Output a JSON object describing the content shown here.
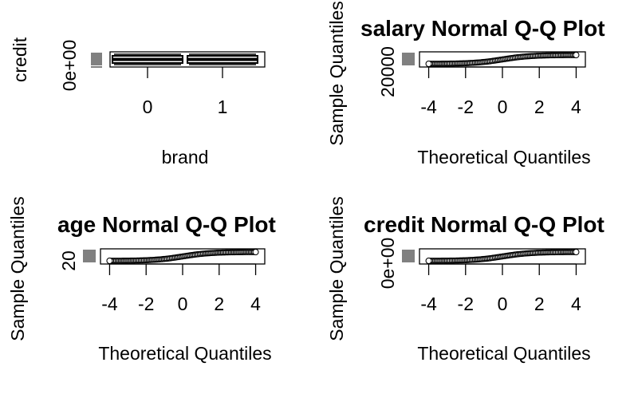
{
  "chart_data": [
    {
      "type": "boxplot",
      "title": "",
      "xlabel": "brand",
      "ylabel": "credit",
      "categories": [
        "0",
        "1"
      ],
      "y_tick_labels": [
        "0e+00"
      ]
    },
    {
      "type": "scatter",
      "title": "salary  Normal Q-Q Plot",
      "xlabel": "Theoretical Quantiles",
      "ylabel": "Sample Quantiles",
      "xlim": [
        -4.5,
        4.5
      ],
      "x_ticks": [
        -4,
        -2,
        0,
        2,
        4
      ],
      "y_tick_labels": [
        "20000"
      ]
    },
    {
      "type": "scatter",
      "title": "age  Normal Q-Q Plot",
      "xlabel": "Theoretical Quantiles",
      "ylabel": "Sample Quantiles",
      "xlim": [
        -4.5,
        4.5
      ],
      "x_ticks": [
        -4,
        -2,
        0,
        2,
        4
      ],
      "y_tick_labels": [
        "20"
      ]
    },
    {
      "type": "scatter",
      "title": "credit  Normal Q-Q Plot",
      "xlabel": "Theoretical Quantiles",
      "ylabel": "Sample Quantiles",
      "xlim": [
        -4.5,
        4.5
      ],
      "x_ticks": [
        -4,
        -2,
        0,
        2,
        4
      ],
      "y_tick_labels": [
        "0e+00"
      ]
    }
  ]
}
